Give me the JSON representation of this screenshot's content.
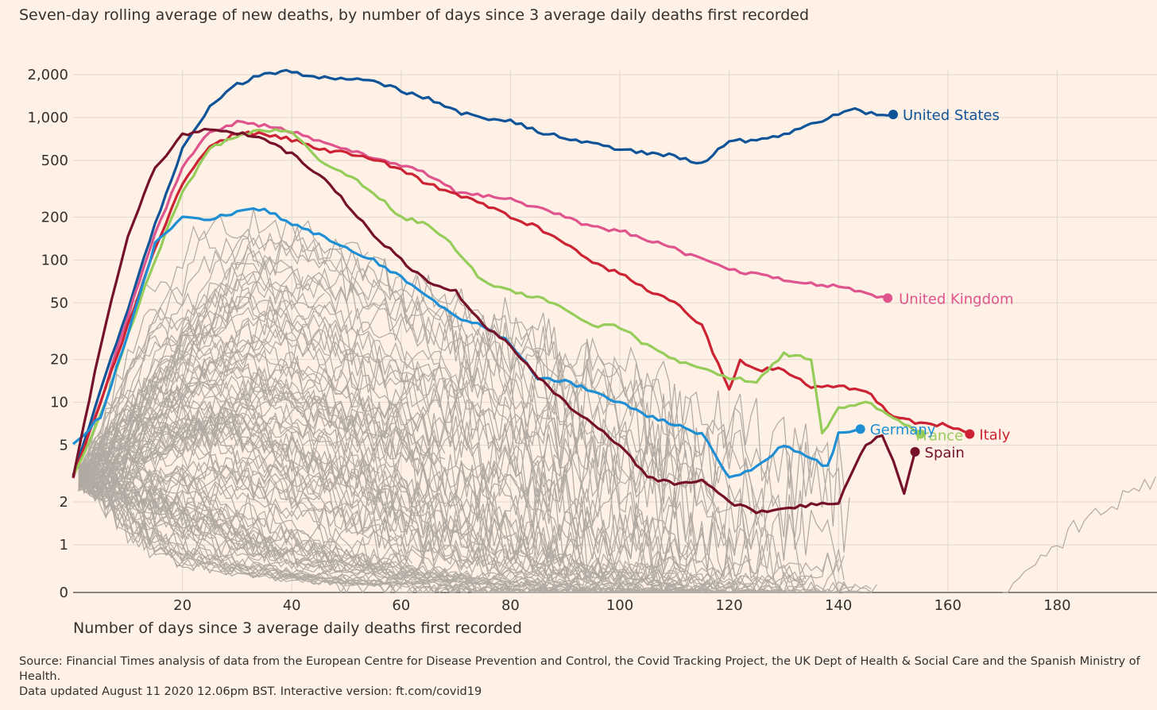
{
  "subtitle": "Seven-day rolling average of new deaths, by number of days since 3 average daily deaths first recorded",
  "source_line1": "Source: Financial Times analysis of data from the European Centre for Disease Prevention and Control, the Covid Tracking Project, the UK Dept of Health & Social Care and the Spanish Ministry of Health.",
  "source_line2": "Data updated August 11 2020 12.06pm BST. Interactive version: ft.com/covid19",
  "colors": {
    "background": "#fff1e5",
    "grid": "#e0d8cf",
    "axis": "#66605c",
    "background_lines": "#b1aaa3",
    "United States": "#0f5499",
    "United Kingdom": "#e0548e",
    "Italy": "#cc2233",
    "France": "#96cc5a",
    "Germany": "#1e8fd4",
    "Spain": "#75112a"
  },
  "chart_data": {
    "type": "line",
    "title": "",
    "xlabel": "Number of days since 3 average daily deaths first recorded",
    "ylabel": "",
    "y_scale": "log (with linear segment 0–1)",
    "xlim": [
      0,
      198
    ],
    "x_ticks": [
      "20",
      "40",
      "60",
      "80",
      "100",
      "120",
      "140",
      "160",
      "180"
    ],
    "x_tick_values": [
      20,
      40,
      60,
      80,
      100,
      120,
      140,
      160,
      180
    ],
    "y_ticks": [
      "2,000",
      "1,000",
      "500",
      "200",
      "100",
      "50",
      "20",
      "10",
      "5",
      "2",
      "1",
      "0"
    ],
    "y_tick_values": [
      2000,
      1000,
      500,
      200,
      100,
      50,
      20,
      10,
      5,
      2,
      1,
      0
    ],
    "grid": true,
    "legend": "direct labels at line ends",
    "series": [
      {
        "name": "United States",
        "points": [
          [
            0,
            3
          ],
          [
            5,
            12
          ],
          [
            10,
            45
          ],
          [
            15,
            180
          ],
          [
            20,
            600
          ],
          [
            25,
            1200
          ],
          [
            30,
            1700
          ],
          [
            35,
            2050
          ],
          [
            40,
            2100
          ],
          [
            45,
            1900
          ],
          [
            50,
            1850
          ],
          [
            55,
            1800
          ],
          [
            60,
            1550
          ],
          [
            65,
            1350
          ],
          [
            70,
            1100
          ],
          [
            75,
            1000
          ],
          [
            80,
            950
          ],
          [
            85,
            800
          ],
          [
            90,
            720
          ],
          [
            95,
            650
          ],
          [
            100,
            600
          ],
          [
            105,
            560
          ],
          [
            110,
            540
          ],
          [
            115,
            470
          ],
          [
            120,
            700
          ],
          [
            125,
            680
          ],
          [
            130,
            760
          ],
          [
            135,
            900
          ],
          [
            140,
            1050
          ],
          [
            142,
            1150
          ],
          [
            145,
            1080
          ],
          [
            148,
            1050
          ],
          [
            150,
            1050
          ]
        ]
      },
      {
        "name": "United Kingdom",
        "points": [
          [
            0,
            3
          ],
          [
            5,
            10
          ],
          [
            10,
            40
          ],
          [
            15,
            150
          ],
          [
            20,
            450
          ],
          [
            25,
            800
          ],
          [
            30,
            920
          ],
          [
            35,
            880
          ],
          [
            40,
            800
          ],
          [
            45,
            680
          ],
          [
            50,
            600
          ],
          [
            55,
            520
          ],
          [
            60,
            460
          ],
          [
            65,
            400
          ],
          [
            70,
            300
          ],
          [
            75,
            280
          ],
          [
            80,
            270
          ],
          [
            85,
            230
          ],
          [
            90,
            200
          ],
          [
            95,
            170
          ],
          [
            100,
            160
          ],
          [
            105,
            140
          ],
          [
            110,
            120
          ],
          [
            115,
            100
          ],
          [
            120,
            85
          ],
          [
            125,
            80
          ],
          [
            130,
            72
          ],
          [
            135,
            68
          ],
          [
            140,
            65
          ],
          [
            145,
            58
          ],
          [
            149,
            54
          ]
        ]
      },
      {
        "name": "Italy",
        "points": [
          [
            0,
            3
          ],
          [
            5,
            10
          ],
          [
            10,
            35
          ],
          [
            15,
            120
          ],
          [
            20,
            350
          ],
          [
            25,
            620
          ],
          [
            30,
            780
          ],
          [
            35,
            760
          ],
          [
            40,
            700
          ],
          [
            45,
            600
          ],
          [
            50,
            560
          ],
          [
            55,
            510
          ],
          [
            60,
            430
          ],
          [
            65,
            340
          ],
          [
            70,
            290
          ],
          [
            75,
            250
          ],
          [
            80,
            200
          ],
          [
            85,
            170
          ],
          [
            90,
            130
          ],
          [
            95,
            95
          ],
          [
            100,
            80
          ],
          [
            105,
            62
          ],
          [
            110,
            50
          ],
          [
            115,
            35
          ],
          [
            120,
            12
          ],
          [
            122,
            20
          ],
          [
            125,
            17
          ],
          [
            130,
            17
          ],
          [
            135,
            13
          ],
          [
            140,
            13
          ],
          [
            145,
            12
          ],
          [
            150,
            8
          ],
          [
            155,
            7
          ],
          [
            160,
            7
          ],
          [
            164,
            6
          ]
        ]
      },
      {
        "name": "France",
        "points": [
          [
            0,
            3
          ],
          [
            5,
            8
          ],
          [
            10,
            30
          ],
          [
            15,
            100
          ],
          [
            20,
            300
          ],
          [
            25,
            600
          ],
          [
            30,
            750
          ],
          [
            35,
            820
          ],
          [
            40,
            800
          ],
          [
            45,
            500
          ],
          [
            50,
            400
          ],
          [
            55,
            300
          ],
          [
            60,
            200
          ],
          [
            65,
            180
          ],
          [
            70,
            120
          ],
          [
            75,
            70
          ],
          [
            80,
            60
          ],
          [
            85,
            55
          ],
          [
            90,
            45
          ],
          [
            95,
            35
          ],
          [
            100,
            34
          ],
          [
            105,
            25
          ],
          [
            110,
            20
          ],
          [
            115,
            17
          ],
          [
            120,
            15
          ],
          [
            125,
            14
          ],
          [
            130,
            22
          ],
          [
            135,
            20
          ],
          [
            137,
            6
          ],
          [
            140,
            9
          ],
          [
            145,
            10
          ],
          [
            150,
            8
          ],
          [
            155,
            6
          ]
        ]
      },
      {
        "name": "Germany",
        "points": [
          [
            0,
            5
          ],
          [
            5,
            8
          ],
          [
            10,
            30
          ],
          [
            15,
            130
          ],
          [
            20,
            200
          ],
          [
            25,
            190
          ],
          [
            30,
            220
          ],
          [
            35,
            230
          ],
          [
            40,
            180
          ],
          [
            45,
            150
          ],
          [
            50,
            120
          ],
          [
            55,
            100
          ],
          [
            60,
            75
          ],
          [
            65,
            55
          ],
          [
            70,
            40
          ],
          [
            75,
            35
          ],
          [
            80,
            26
          ],
          [
            85,
            15
          ],
          [
            90,
            14
          ],
          [
            95,
            12
          ],
          [
            100,
            10
          ],
          [
            105,
            8
          ],
          [
            110,
            7
          ],
          [
            115,
            6
          ],
          [
            120,
            3
          ],
          [
            125,
            3.5
          ],
          [
            130,
            5
          ],
          [
            135,
            4
          ],
          [
            138,
            3.5
          ],
          [
            140,
            6
          ],
          [
            144,
            6.5
          ]
        ]
      },
      {
        "name": "Spain",
        "points": [
          [
            0,
            3
          ],
          [
            5,
            25
          ],
          [
            10,
            150
          ],
          [
            15,
            450
          ],
          [
            20,
            750
          ],
          [
            25,
            830
          ],
          [
            30,
            780
          ],
          [
            35,
            700
          ],
          [
            40,
            550
          ],
          [
            45,
            400
          ],
          [
            50,
            250
          ],
          [
            55,
            150
          ],
          [
            60,
            100
          ],
          [
            65,
            70
          ],
          [
            70,
            60
          ],
          [
            75,
            35
          ],
          [
            80,
            25
          ],
          [
            85,
            15
          ],
          [
            90,
            10
          ],
          [
            95,
            7
          ],
          [
            100,
            5
          ],
          [
            105,
            3
          ],
          [
            110,
            2.7
          ],
          [
            115,
            2.8
          ],
          [
            120,
            2
          ],
          [
            125,
            1.7
          ],
          [
            130,
            1.8
          ],
          [
            135,
            1.9
          ],
          [
            140,
            2
          ],
          [
            145,
            5
          ],
          [
            148,
            6
          ],
          [
            150,
            4
          ],
          [
            152,
            2.3
          ],
          [
            154,
            4.5
          ]
        ]
      }
    ],
    "end_labels": [
      "United States",
      "United Kingdom",
      "Italy",
      "France",
      "Germany",
      "Spain"
    ],
    "background_series_note": "many grey lines for other countries"
  }
}
